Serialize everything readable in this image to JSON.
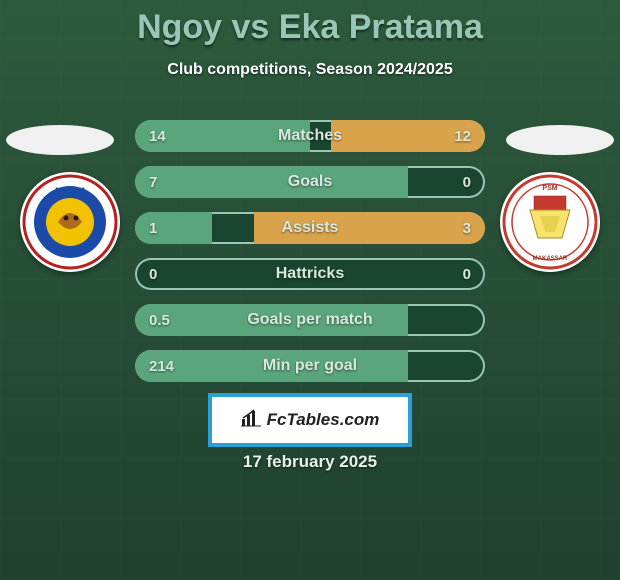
{
  "header": {
    "title": "Ngoy vs Eka Pratama",
    "subtitle": "Club competitions, Season 2024/2025",
    "title_color": "#9ac7b5",
    "subtitle_color": "#ffffff"
  },
  "background": {
    "gradient_top": "#2d5a3d",
    "gradient_bottom": "#204030"
  },
  "left_player": {
    "club_logo_label": "AREMA",
    "logo_primary": "#1c4aa8",
    "logo_secondary": "#f2c200",
    "logo_ring": "#b82020",
    "logo_text_color": "#1c4aa8"
  },
  "right_player": {
    "club_logo_label": "PSM MAKASSAR",
    "logo_primary": "#c43a2f",
    "logo_secondary": "#f5e36b",
    "logo_ring": "#c43a2f",
    "logo_text_color": "#9c2f26"
  },
  "stats": {
    "bar_bg": "#1a4530",
    "bar_border": "#9ac7b5",
    "left_fill_color": "#5aa57c",
    "right_fill_color": "#d8a34a",
    "value_color": "#d9e8de",
    "label_color": "#d9e8de",
    "rows": [
      {
        "label": "Matches",
        "left_value": "14",
        "right_value": "12",
        "left_pct": 50,
        "right_pct": 44
      },
      {
        "label": "Goals",
        "left_value": "7",
        "right_value": "0",
        "left_pct": 78,
        "right_pct": 0
      },
      {
        "label": "Assists",
        "left_value": "1",
        "right_value": "3",
        "left_pct": 22,
        "right_pct": 66
      },
      {
        "label": "Hattricks",
        "left_value": "0",
        "right_value": "0",
        "left_pct": 0,
        "right_pct": 0
      },
      {
        "label": "Goals per match",
        "left_value": "0.5",
        "right_value": "",
        "left_pct": 78,
        "right_pct": 0
      },
      {
        "label": "Min per goal",
        "left_value": "214",
        "right_value": "",
        "left_pct": 78,
        "right_pct": 0
      }
    ]
  },
  "footer": {
    "brand": "FcTables.com",
    "brand_border": "#2aa0d6",
    "brand_bg": "#ffffff",
    "brand_text_color": "#222222",
    "date": "17 february 2025",
    "date_color": "#e8f1ec"
  }
}
